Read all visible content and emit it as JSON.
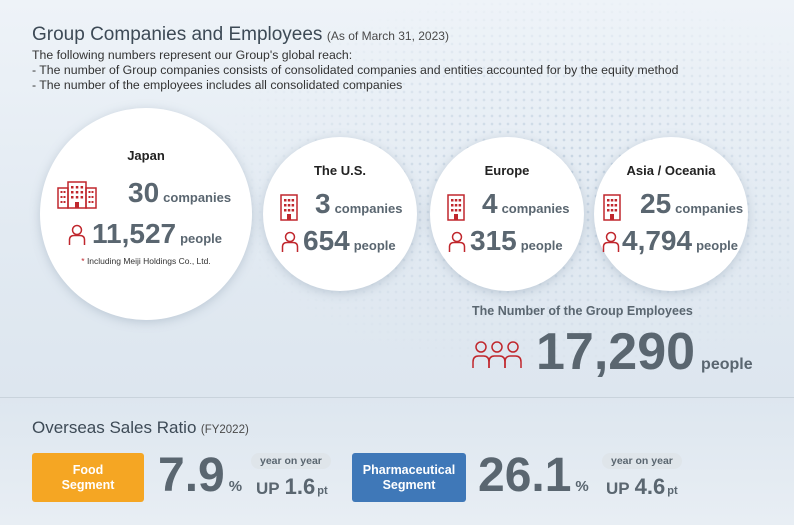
{
  "header": {
    "title": "Group Companies and Employees",
    "as_of": "(As of March 31, 2023)",
    "desc_line1": "The following numbers represent our Group's global reach:",
    "desc_line2": "- The number of Group companies consists of consolidated companies and entities accounted for by the equity method",
    "desc_line3": "- The number of the employees includes all consolidated companies"
  },
  "regions": {
    "japan": {
      "name": "Japan",
      "companies": "30",
      "companies_unit": "companies",
      "people": "11,527",
      "people_unit": "people",
      "note_star": "*",
      "note": " Including Meiji Holdings Co., Ltd."
    },
    "us": {
      "name": "The U.S.",
      "companies": "3",
      "companies_unit": "companies",
      "people": "654",
      "people_unit": "people"
    },
    "europe": {
      "name": "Europe",
      "companies": "4",
      "companies_unit": "companies",
      "people": "315",
      "people_unit": "people"
    },
    "asia": {
      "name": "Asia / Oceania",
      "companies": "25",
      "companies_unit": "companies",
      "people": "4,794",
      "people_unit": "people"
    }
  },
  "total": {
    "label": "The Number of the Group Employees",
    "value": "17,290",
    "unit": "people"
  },
  "overseas": {
    "title": "Overseas Sales Ratio",
    "period": "(FY2022)",
    "food": {
      "label_line1": "Food",
      "label_line2": "Segment",
      "ratio": "7.9",
      "ratio_unit": "%",
      "yoy_label": "year on year",
      "yoy_dir": "UP",
      "yoy_value": "1.6",
      "yoy_unit": "pt"
    },
    "pharma": {
      "label_line1": "Pharmaceutical",
      "label_line2": "Segment",
      "ratio": "26.1",
      "ratio_unit": "%",
      "yoy_label": "year on year",
      "yoy_dir": "UP",
      "yoy_value": "4.6",
      "yoy_unit": "pt"
    }
  },
  "colors": {
    "accent_red": "#c0272d",
    "number_gray": "#5a6670",
    "food_orange": "#f5a623",
    "pharma_blue": "#3f78b8"
  },
  "icons": {
    "building": "building-icon",
    "person": "person-icon",
    "people_group": "people-group-icon"
  }
}
